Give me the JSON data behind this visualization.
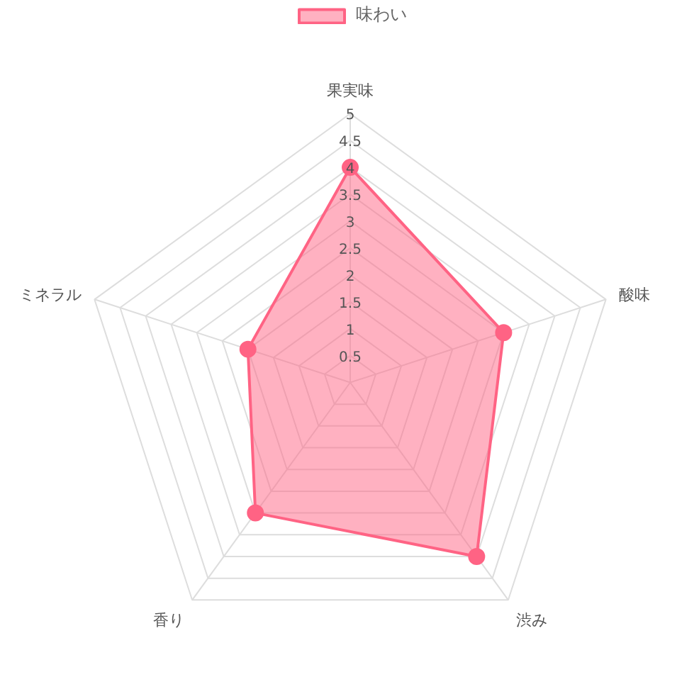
{
  "chart_data": {
    "type": "radar",
    "categories": [
      "果実味",
      "酸味",
      "渋み",
      "香り",
      "ミネラル"
    ],
    "series": [
      {
        "name": "味わい",
        "color": "#ff6384",
        "values": [
          4,
          3,
          4,
          3,
          2
        ]
      }
    ],
    "ylim": [
      0,
      5
    ],
    "yticks": [
      0.5,
      1,
      1.5,
      2,
      2.5,
      3,
      3.5,
      4,
      4.5,
      5
    ],
    "grid": true,
    "legend": "top",
    "marker": "circle"
  }
}
